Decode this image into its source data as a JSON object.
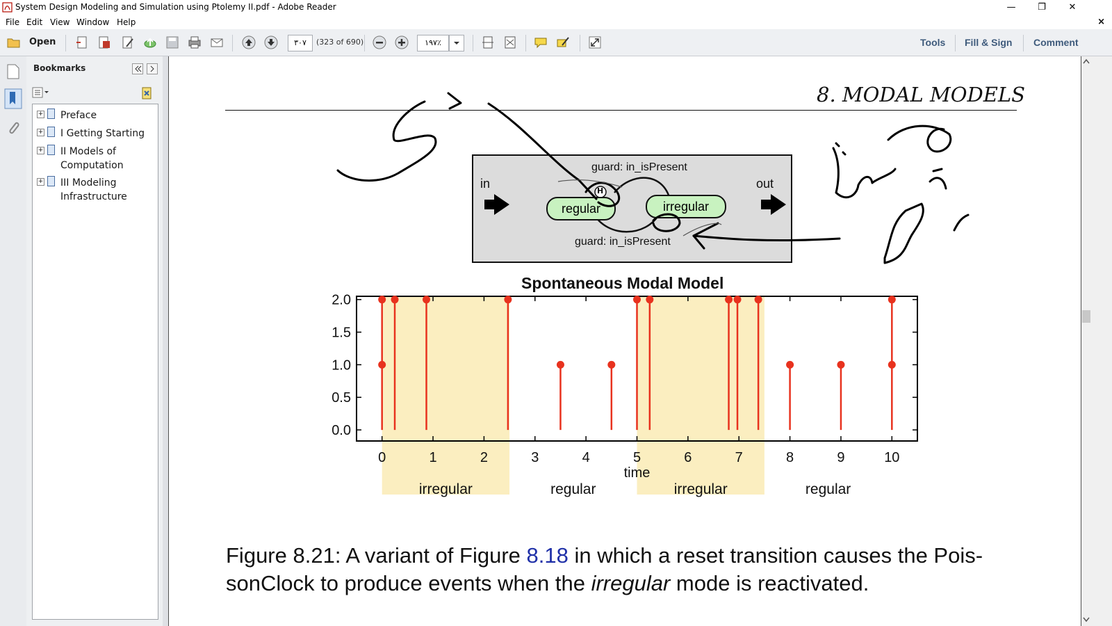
{
  "window": {
    "title": "System Design Modeling and Simulation using Ptolemy II.pdf - Adobe Reader",
    "minimize": "—",
    "restore": "❐",
    "close": "✕"
  },
  "menu": {
    "items": [
      "File",
      "Edit",
      "View",
      "Window",
      "Help"
    ],
    "doc_close": "×"
  },
  "toolbar": {
    "open_label": "Open",
    "page_number": "۳۰۷",
    "page_count": "(323 of 690)",
    "zoom": "۱۹۷٪",
    "tools_label": "Tools",
    "fill_sign_label": "Fill & Sign",
    "comment_label": "Comment"
  },
  "bookmarks": {
    "title": "Bookmarks",
    "items": [
      {
        "label": "Preface"
      },
      {
        "label": "I Getting Starting"
      },
      {
        "label": "II Models of Computation"
      },
      {
        "label": "III Modeling Infrastructure"
      }
    ]
  },
  "page": {
    "chapter_header": "8. MODAL MODELS",
    "diagram": {
      "port_in": "in",
      "port_out": "out",
      "state_regular": "regular",
      "state_irregular": "irregular",
      "guard_top": "guard: in_isPresent",
      "guard_bottom": "guard: in_isPresent",
      "history_symbol": "H"
    },
    "caption": {
      "prefix": "Figure 8.21: A variant of Figure ",
      "link": "8.18",
      "middle": " in which a reset transition causes the Pois-",
      "line2_start": "sonClock to produce events when the ",
      "line2_em": "irregular",
      "line2_end": " mode is reactivated."
    }
  },
  "chart_data": {
    "type": "stem",
    "title": "Spontaneous Modal Model",
    "xlabel": "time",
    "ylabel": "",
    "xlim": [
      -0.5,
      10.5
    ],
    "ylim": [
      -0.17,
      2.05
    ],
    "xticks": [
      0,
      1,
      2,
      3,
      4,
      5,
      6,
      7,
      8,
      9,
      10
    ],
    "yticks": [
      0.0,
      0.5,
      1.0,
      1.5,
      2.0
    ],
    "ytick_labels": [
      "0.0",
      "0.5",
      "1.0",
      "1.5",
      "2.0"
    ],
    "points": [
      {
        "x": 0.0,
        "y": 2.0
      },
      {
        "x": 0.0,
        "y": 1.0
      },
      {
        "x": 0.25,
        "y": 2.0
      },
      {
        "x": 0.87,
        "y": 2.0
      },
      {
        "x": 2.47,
        "y": 2.0
      },
      {
        "x": 3.5,
        "y": 1.0
      },
      {
        "x": 4.5,
        "y": 1.0
      },
      {
        "x": 5.0,
        "y": 2.0
      },
      {
        "x": 5.25,
        "y": 2.0
      },
      {
        "x": 6.8,
        "y": 2.0
      },
      {
        "x": 6.97,
        "y": 2.0
      },
      {
        "x": 7.38,
        "y": 2.0
      },
      {
        "x": 8.0,
        "y": 1.0
      },
      {
        "x": 9.0,
        "y": 1.0
      },
      {
        "x": 10.0,
        "y": 2.0
      },
      {
        "x": 10.0,
        "y": 1.0
      }
    ],
    "mode_bands": [
      {
        "label": "irregular",
        "start": 0.0,
        "end": 2.5,
        "shaded": true
      },
      {
        "label": "regular",
        "start": 2.5,
        "end": 5.0,
        "shaded": false
      },
      {
        "label": "irregular",
        "start": 5.0,
        "end": 7.5,
        "shaded": true
      },
      {
        "label": "regular",
        "start": 7.5,
        "end": 10.0,
        "shaded": false
      }
    ],
    "colors": {
      "stem": "#e8321e",
      "band": "#fbeec0"
    }
  }
}
